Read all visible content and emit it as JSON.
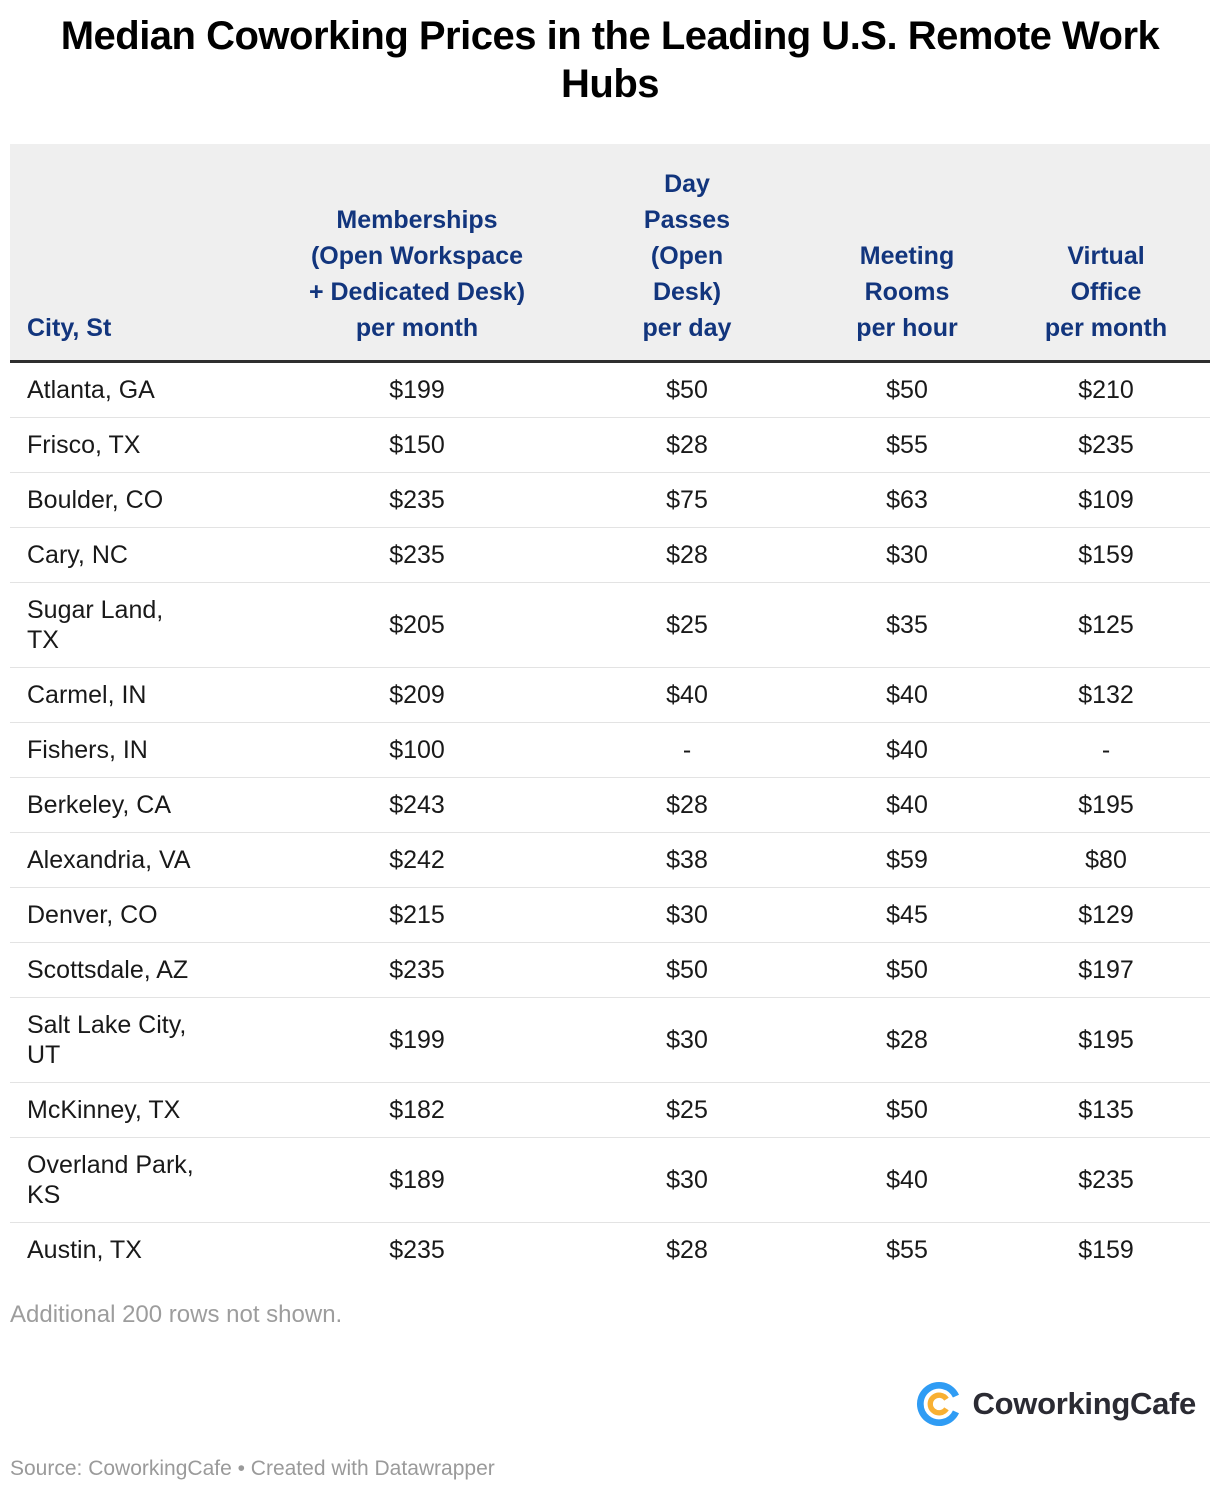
{
  "title": "Median Coworking Prices in the Leading U.S. Remote Work Hubs",
  "chart_data": {
    "type": "table",
    "title": "Median Coworking Prices in the Leading U.S. Remote Work Hubs",
    "columns": [
      "City, St",
      "Memberships (Open Workspace + Dedicated Desk) per month",
      "Day Passes (Open Desk) per day",
      "Meeting Rooms per hour",
      "Virtual Office per month"
    ],
    "rows": [
      [
        "Atlanta, GA",
        "$199",
        "$50",
        "$50",
        "$210"
      ],
      [
        "Frisco, TX",
        "$150",
        "$28",
        "$55",
        "$235"
      ],
      [
        "Boulder, CO",
        "$235",
        "$75",
        "$63",
        "$109"
      ],
      [
        "Cary, NC",
        "$235",
        "$28",
        "$30",
        "$159"
      ],
      [
        "Sugar Land,\nTX",
        "$205",
        "$25",
        "$35",
        "$125"
      ],
      [
        "Carmel, IN",
        "$209",
        "$40",
        "$40",
        "$132"
      ],
      [
        "Fishers, IN",
        "$100",
        "-",
        "$40",
        "-"
      ],
      [
        "Berkeley, CA",
        "$243",
        "$28",
        "$40",
        "$195"
      ],
      [
        "Alexandria, VA",
        "$242",
        "$38",
        "$59",
        "$80"
      ],
      [
        "Denver, CO",
        "$215",
        "$30",
        "$45",
        "$129"
      ],
      [
        "Scottsdale, AZ",
        "$235",
        "$50",
        "$50",
        "$197"
      ],
      [
        "Salt Lake City,\nUT",
        "$199",
        "$30",
        "$28",
        "$195"
      ],
      [
        "McKinney, TX",
        "$182",
        "$25",
        "$50",
        "$135"
      ],
      [
        "Overland Park,\nKS",
        "$189",
        "$30",
        "$40",
        "$235"
      ],
      [
        "Austin, TX",
        "$235",
        "$28",
        "$55",
        "$159"
      ]
    ],
    "note": "Additional 200 rows not shown.",
    "source": "Source: CoworkingCafe • Created with Datawrapper",
    "legend_position": "none",
    "grid": "row-separators"
  },
  "header": {
    "col_labels": [
      "City, St",
      "Memberships\n(Open Workspace\n+ Dedicated Desk)\nper month",
      "Day\nPasses\n(Open\nDesk)\nper day",
      "Meeting\nRooms\nper hour",
      "Virtual\nOffice\nper month"
    ]
  },
  "footer": {
    "note": "Additional 200 rows not shown.",
    "brand": "CoworkingCafe",
    "source": "Source: CoworkingCafe • Created with Datawrapper"
  },
  "colors": {
    "header_bg": "#efefef",
    "header_text": "#12357d",
    "header_rule": "#2e2e2e",
    "row_separator": "#e3e3e3",
    "body_text": "#191919",
    "muted_text": "#9d9d9d",
    "logo_blue": "#2f9cf4",
    "logo_yellow": "#f8b033",
    "wordmark_text": "#2b2b33"
  },
  "icons": {
    "brand_logo": "coworkingcafe-logo-icon"
  }
}
